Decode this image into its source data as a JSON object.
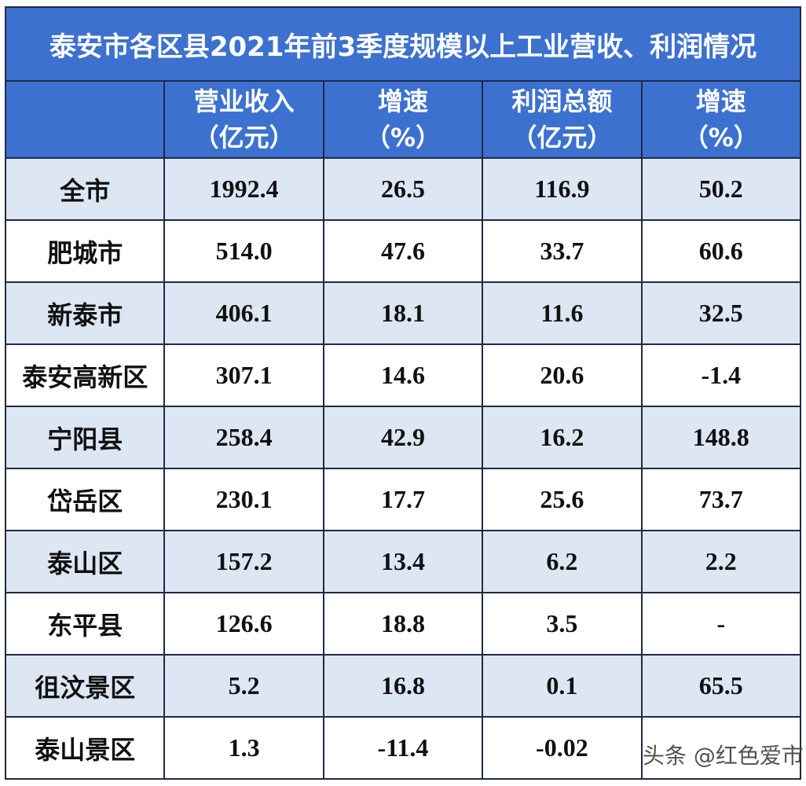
{
  "chart_data": {
    "type": "table",
    "title": "泰安市各区县2021年前3季度规模以上工业营收、利润情况",
    "columns": [
      {
        "label": "",
        "unit": ""
      },
      {
        "label": "营业收入",
        "unit": "（亿元）"
      },
      {
        "label": "增速",
        "unit": "（%）"
      },
      {
        "label": "利润总额",
        "unit": "（亿元）"
      },
      {
        "label": "增速",
        "unit": "（%）"
      }
    ],
    "rows": [
      [
        "全市",
        "1992.4",
        "26.5",
        "116.9",
        "50.2"
      ],
      [
        "肥城市",
        "514.0",
        "47.6",
        "33.7",
        "60.6"
      ],
      [
        "新泰市",
        "406.1",
        "18.1",
        "11.6",
        "32.5"
      ],
      [
        "泰安高新区",
        "307.1",
        "14.6",
        "20.6",
        "-1.4"
      ],
      [
        "宁阳县",
        "258.4",
        "42.9",
        "16.2",
        "148.8"
      ],
      [
        "岱岳区",
        "230.1",
        "17.7",
        "25.6",
        "73.7"
      ],
      [
        "泰山区",
        "157.2",
        "13.4",
        "6.2",
        "2.2"
      ],
      [
        "东平县",
        "126.6",
        "18.8",
        "3.5",
        "-"
      ],
      [
        "徂汶景区",
        "5.2",
        "16.8",
        "0.1",
        "65.5"
      ],
      [
        "泰山景区",
        "1.3",
        "-11.4",
        "-0.02",
        ""
      ]
    ]
  },
  "watermark": "头条 @红色爱市",
  "colors": {
    "header_bg": "#3d71cf",
    "stripe_bg": "#dde6f3"
  }
}
